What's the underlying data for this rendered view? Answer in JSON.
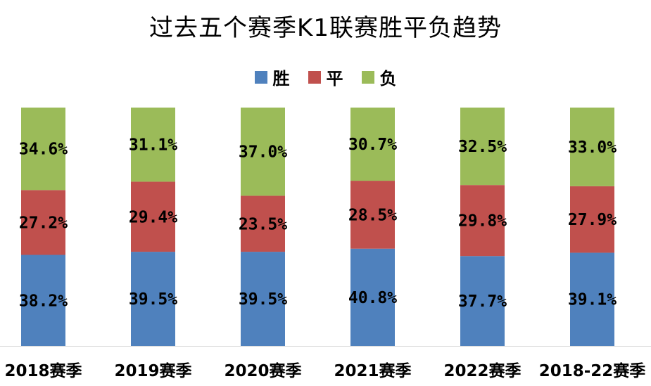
{
  "chart_data": {
    "type": "bar",
    "stacked": true,
    "title": "过去五个赛季K1联赛胜平负趋势",
    "categories": [
      "2018赛季",
      "2019赛季",
      "2020赛季",
      "2021赛季",
      "2022赛季",
      "2018-22赛季"
    ],
    "series": [
      {
        "name": "胜",
        "color": "#4f81bd",
        "values": [
          38.2,
          39.5,
          39.5,
          40.8,
          37.7,
          39.1
        ],
        "labels": [
          "38.2%",
          "39.5%",
          "39.5%",
          "40.8%",
          "37.7%",
          "39.1%"
        ]
      },
      {
        "name": "平",
        "color": "#c0504d",
        "values": [
          27.2,
          29.4,
          23.5,
          28.5,
          29.8,
          27.9
        ],
        "labels": [
          "27.2%",
          "29.4%",
          "23.5%",
          "28.5%",
          "29.8%",
          "27.9%"
        ]
      },
      {
        "name": "负",
        "color": "#9bbb59",
        "values": [
          34.6,
          31.1,
          37.0,
          30.7,
          32.5,
          33.0
        ],
        "labels": [
          "34.6%",
          "31.1%",
          "37.0%",
          "30.7%",
          "32.5%",
          "33.0%"
        ]
      }
    ],
    "ylim": [
      0,
      100
    ],
    "grid": false,
    "legend_position": "top-center"
  }
}
